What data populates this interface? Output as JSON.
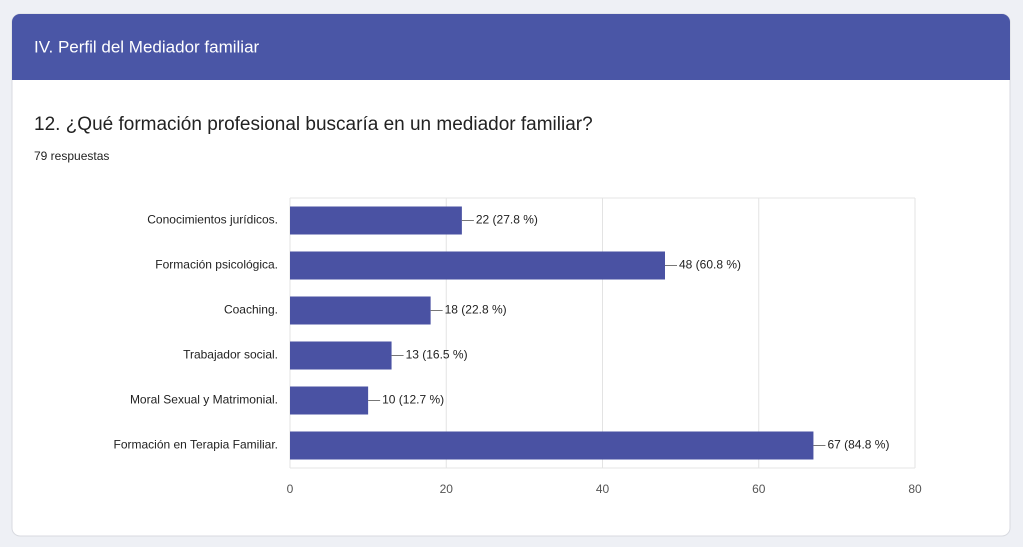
{
  "header": {
    "title": "IV. Perfil del Mediador familiar"
  },
  "chart_data": {
    "type": "bar",
    "orientation": "horizontal",
    "title": "12. ¿Qué formación profesional buscaría en un mediador familiar?",
    "subtitle": "79 respuestas",
    "categories": [
      "Conocimientos jurídicos.",
      "Formación psicológica.",
      "Coaching.",
      "Trabajador social.",
      "Moral Sexual y Matrimonial.",
      "Formación en Terapia Familiar."
    ],
    "values": [
      22,
      48,
      18,
      13,
      10,
      67
    ],
    "value_labels": [
      "22 (27.8 %)",
      "48 (60.8 %)",
      "18 (22.8 %)",
      "13 (16.5 %)",
      "10 (12.7 %)",
      "67 (84.8 %)"
    ],
    "color": "#4a52a3",
    "xlim": [
      0,
      80
    ],
    "xticks": [
      0,
      20,
      40,
      60,
      80
    ],
    "grid": true
  }
}
